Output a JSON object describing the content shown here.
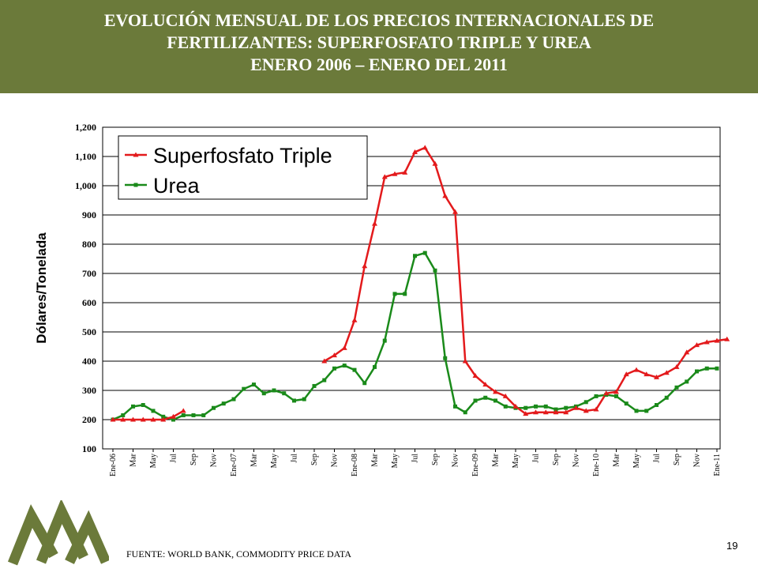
{
  "header": {
    "title_line1": "EVOLUCIÓN MENSUAL DE LOS PRECIOS INTERNACIONALES DE",
    "title_line2": "FERTILIZANTES: SUPERFOSFATO TRIPLE Y UREA",
    "title_line3": "ENERO 2006 – ENERO DEL 2011",
    "background_color": "#6b7a3a"
  },
  "footer": {
    "source": "FUENTE: WORLD BANK, COMMODITY PRICE DATA",
    "page_number": "19",
    "logo_color": "#6b7a3a",
    "logo": "triangular-peaks-logo"
  },
  "chart_data": {
    "type": "line",
    "title": "",
    "xlabel": "",
    "ylabel": "Dólares/Tonelada",
    "ylim": [
      100,
      1200
    ],
    "yticks": [
      "100",
      "200",
      "300",
      "400",
      "500",
      "600",
      "700",
      "800",
      "900",
      "1,000",
      "1,100",
      "1,200"
    ],
    "grid": "horizontal",
    "legend_position": "top-left",
    "x_tick_labels": [
      "Ene-06",
      "Mar",
      "May",
      "Jul",
      "Sep",
      "Nov",
      "Ene-07",
      "Mar",
      "May",
      "Jul",
      "Sep",
      "Nov",
      "Ene-08",
      "Mar",
      "May",
      "Jul",
      "Sep",
      "Nov",
      "Ene-09",
      "Mar",
      "May",
      "Jul",
      "Sep",
      "Nov",
      "Ene-10",
      "Mar",
      "May",
      "Jul",
      "Sep",
      "Nov",
      "Ene-11"
    ],
    "series": [
      {
        "name": "Superfosfato Triple",
        "color": "#e31a1c",
        "marker": "triangle",
        "segments": [
          {
            "start": 0,
            "values": [
              200,
              200,
              200,
              200,
              200,
              200,
              210,
              230
            ]
          },
          {
            "start": 21,
            "values": [
              400,
              420,
              445,
              540,
              725,
              870,
              1030,
              1040,
              1045,
              1115,
              1130,
              1075,
              965,
              910,
              400,
              350,
              320,
              295,
              280,
              245,
              220,
              225,
              225,
              225,
              225,
              240,
              230,
              235,
              290,
              295,
              355,
              370,
              355,
              345,
              360,
              380,
              430,
              455,
              465,
              470,
              475
            ]
          }
        ]
      },
      {
        "name": "Urea",
        "color": "#1a8a1a",
        "marker": "square",
        "segments": [
          {
            "start": 0,
            "values": [
              200,
              215,
              245,
              250,
              230,
              210,
              200,
              215,
              215,
              215,
              240,
              255,
              270,
              305,
              320,
              290,
              300,
              290,
              265,
              270,
              315,
              335,
              375,
              385,
              370,
              325,
              380,
              470,
              630,
              630,
              760,
              770,
              710,
              410,
              245,
              225,
              265,
              275,
              265,
              245,
              240,
              240,
              245,
              245,
              235,
              240,
              245,
              260,
              280,
              285,
              280,
              255,
              230,
              230,
              250,
              275,
              310,
              330,
              365,
              375,
              375
            ]
          }
        ]
      }
    ]
  }
}
